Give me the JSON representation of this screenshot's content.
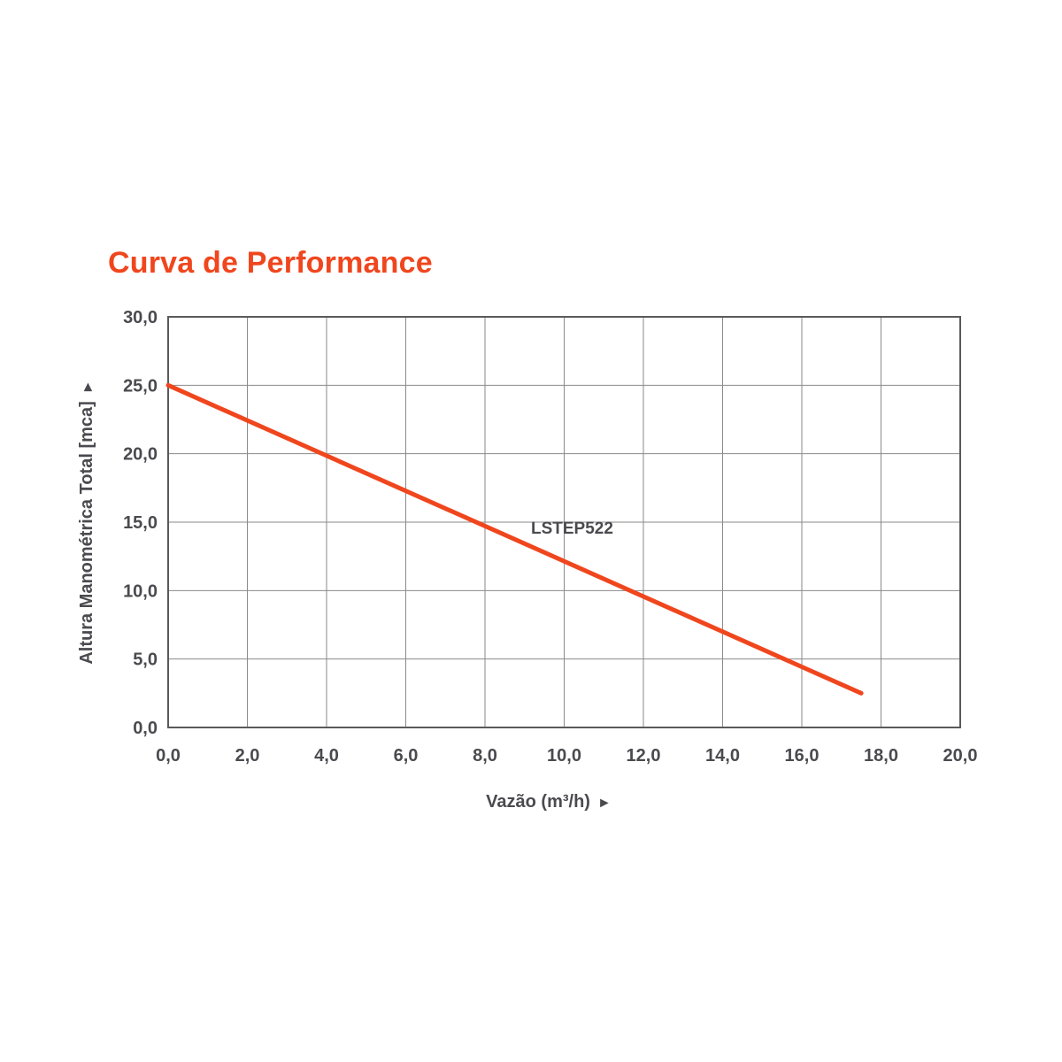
{
  "chart_data": {
    "type": "line",
    "title": "Curva de Performance",
    "xlabel": "Vazão (m³/h)",
    "ylabel": "Altura Manométrica Total [mca]",
    "xlim": [
      0,
      20
    ],
    "ylim": [
      0,
      30
    ],
    "x_ticks": [
      "0,0",
      "2,0",
      "4,0",
      "6,0",
      "8,0",
      "10,0",
      "12,0",
      "14,0",
      "16,0",
      "18,0",
      "20,0"
    ],
    "y_ticks": [
      "0,0",
      "5,0",
      "10,0",
      "15,0",
      "20,0",
      "25,0",
      "30,0"
    ],
    "grid": true,
    "series": [
      {
        "name": "LSTEP522",
        "color": "#f0461e",
        "x": [
          0,
          17.5
        ],
        "y": [
          25,
          2.5
        ]
      }
    ]
  }
}
